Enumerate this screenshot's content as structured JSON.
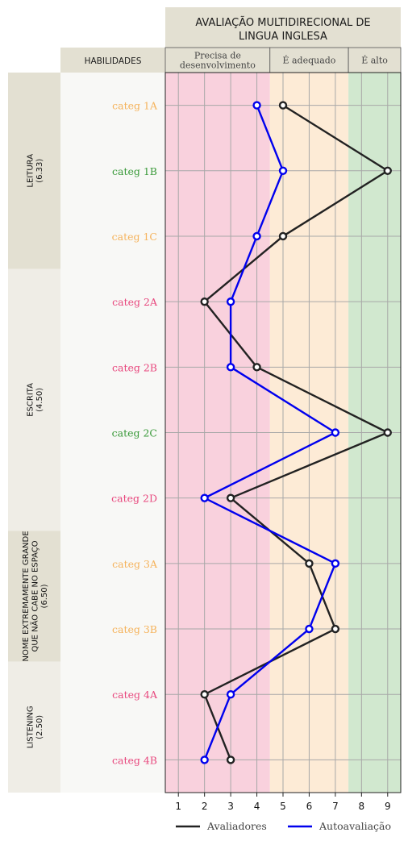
{
  "title": {
    "line1": "AVALIAÇÃO MULTIDIRECIONAL DE",
    "line2": "LINGUA INGLESA"
  },
  "skills_header": "HABILIDADES",
  "bands": [
    {
      "label_lines": [
        "Precisa de",
        "desenvolvimento"
      ],
      "from": 0.5,
      "to": 4.5,
      "color": "#f9d1dd"
    },
    {
      "label_lines": [
        "É adequado"
      ],
      "from": 4.5,
      "to": 7.5,
      "color": "#fdebd6"
    },
    {
      "label_lines": [
        "É alto"
      ],
      "from": 7.5,
      "to": 9.5,
      "color": "#d1e8cf"
    }
  ],
  "groups": [
    {
      "name_lines": [
        "LEITURA",
        "(6.33)"
      ],
      "count": 3,
      "bg": "#e3e0d2"
    },
    {
      "name_lines": [
        "ESCRITA",
        "(4.50)"
      ],
      "count": 4,
      "bg": "#efede6"
    },
    {
      "name_lines": [
        "NOME EXTREMAMENTE GRANDE",
        "QUE NÃO CABE NO ESPAÇO",
        "(6.50)"
      ],
      "count": 2,
      "bg": "#e3e0d2"
    },
    {
      "name_lines": [
        "LISTENING",
        "(2.50)"
      ],
      "count": 2,
      "bg": "#efede6"
    }
  ],
  "colors": {
    "low": "#e8487e",
    "mid": "#f5b35c",
    "high": "#3a9a3a",
    "evaluators": "#222222",
    "self": "#0000ee",
    "header_bg": "#e3e0d2",
    "panel_bg": "#f8f8f6"
  },
  "chart_data": {
    "type": "line",
    "orientation": "horizontal",
    "categories": [
      "categ 1A",
      "categ 1B",
      "categ 1C",
      "categ 2A",
      "categ 2B",
      "categ 2C",
      "categ 2D",
      "categ 3A",
      "categ 3B",
      "categ 4A",
      "categ 4B"
    ],
    "category_levels": [
      "mid",
      "high",
      "mid",
      "low",
      "low",
      "high",
      "low",
      "mid",
      "mid",
      "low",
      "low"
    ],
    "x_ticks": [
      1,
      2,
      3,
      4,
      5,
      6,
      7,
      8,
      9
    ],
    "xlim": [
      0.5,
      9.5
    ],
    "grid": true,
    "legend_position": "bottom",
    "series": [
      {
        "name": "Avaliadores",
        "values": [
          5,
          9,
          5,
          2,
          4,
          9,
          3,
          6,
          7,
          2,
          3
        ]
      },
      {
        "name": "Autoavaliação",
        "values": [
          4,
          5,
          4,
          3,
          3,
          7,
          2,
          7,
          6,
          3,
          2
        ]
      }
    ]
  }
}
